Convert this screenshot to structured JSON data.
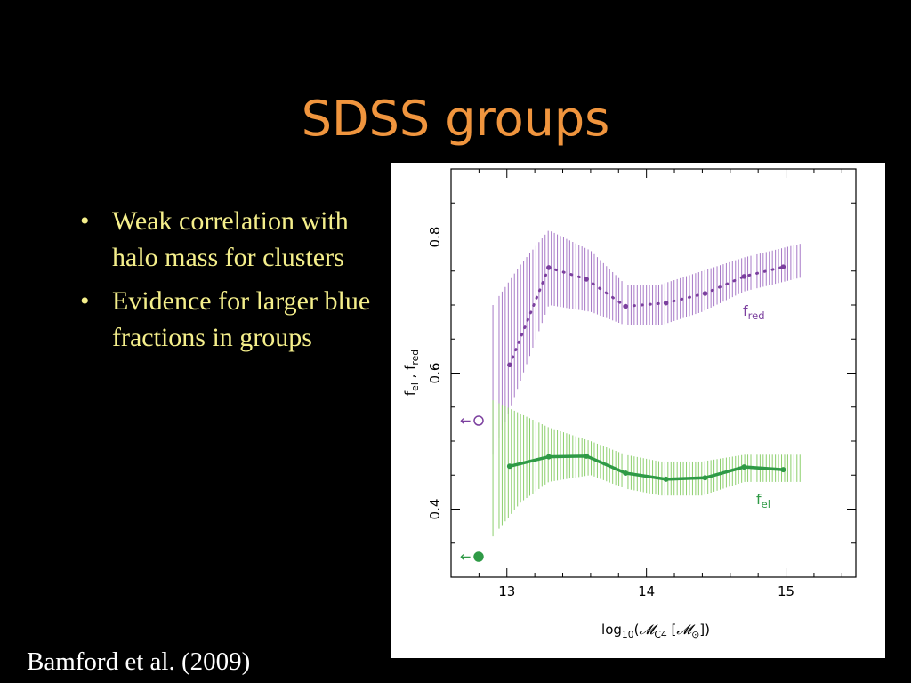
{
  "slide": {
    "title": "SDSS groups",
    "bullets": [
      "Weak correlation with halo mass for clusters",
      "Evidence for larger blue fractions in groups"
    ],
    "citation": "Bamford et al. (2009)"
  },
  "chart_data": {
    "type": "line",
    "xlim": [
      12.6,
      15.5
    ],
    "ylim": [
      0.3,
      0.9
    ],
    "xticks": [
      13,
      14,
      15
    ],
    "yticks": [
      0.4,
      0.6,
      0.8
    ],
    "colors": {
      "red": "#7b3f9e",
      "el": "#2f9a46",
      "red_band": "#a779c7",
      "el_band": "#8ccf6c"
    },
    "series": [
      {
        "key": "red",
        "style": "dotted",
        "x": [
          13.02,
          13.3,
          13.57,
          13.85,
          14.14,
          14.42,
          14.7,
          14.98
        ],
        "y": [
          0.612,
          0.755,
          0.738,
          0.698,
          0.703,
          0.717,
          0.742,
          0.756
        ],
        "band_x": [
          12.9,
          13.1,
          13.3,
          13.6,
          13.85,
          14.1,
          14.4,
          14.7,
          15.1
        ],
        "band_lo": [
          0.48,
          0.59,
          0.7,
          0.69,
          0.67,
          0.67,
          0.69,
          0.72,
          0.74
        ],
        "band_hi": [
          0.7,
          0.76,
          0.81,
          0.78,
          0.73,
          0.73,
          0.75,
          0.77,
          0.79
        ]
      },
      {
        "key": "el",
        "style": "solid",
        "x": [
          13.02,
          13.3,
          13.57,
          13.85,
          14.14,
          14.42,
          14.7,
          14.98
        ],
        "y": [
          0.463,
          0.477,
          0.478,
          0.453,
          0.444,
          0.446,
          0.462,
          0.458
        ],
        "band_x": [
          12.9,
          13.1,
          13.3,
          13.6,
          13.85,
          14.1,
          14.4,
          14.7,
          15.1
        ],
        "band_lo": [
          0.36,
          0.41,
          0.44,
          0.45,
          0.43,
          0.42,
          0.42,
          0.44,
          0.44
        ],
        "band_hi": [
          0.56,
          0.54,
          0.52,
          0.5,
          0.48,
          0.47,
          0.47,
          0.48,
          0.48
        ]
      }
    ],
    "field_markers": [
      {
        "key": "red",
        "y": 0.53,
        "filled": false
      },
      {
        "key": "el",
        "y": 0.33,
        "filled": true
      }
    ],
    "labels": {
      "red_main": "f",
      "red_sub": "red",
      "el_main": "f",
      "el_sub": "el",
      "xlabel_log": "log",
      "xlabel_base": "10",
      "xlabel_open": "(",
      "xlabel_M": "𝓜",
      "xlabel_sub": "C4",
      "xlabel_rest": "[",
      "xlabel_sun": "⊙",
      "xlabel_close": "])",
      "ylabel_f1": "f",
      "ylabel_s1": "el",
      "ylabel_comma": " , ",
      "ylabel_f2": "f",
      "ylabel_s2": "red",
      "marker_arrow": "←"
    }
  }
}
